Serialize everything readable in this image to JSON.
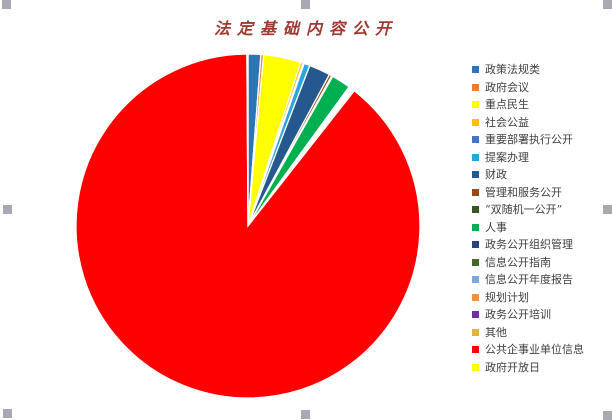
{
  "window": {
    "background": "#FFFFFF"
  },
  "selection": {
    "handle_color": "#A7AAB2"
  },
  "chart_data": {
    "type": "pie",
    "title": "法定基础内容公开",
    "title_color": "#9E3A32",
    "legend_position": "right",
    "legend_text_color": "#3F3F3F",
    "grid": "off",
    "data_labels": "none",
    "unit": "%",
    "categories": [
      "政策法规类",
      "政府会议",
      "重点民生",
      "社会公益",
      "重要部署执行公开",
      "提案办理",
      "财政",
      "管理和服务公开",
      "“双随机一公开”",
      "人事",
      "政务公开组织管理",
      "信息公开指南",
      "信息公开年度报告",
      "规划计划",
      "政务公开培训",
      "其他",
      "公共企事业单位信息",
      "政府开放日"
    ],
    "values": [
      1.2,
      0.25,
      3.5,
      0.25,
      0.1,
      0.55,
      2.0,
      0.25,
      0.1,
      1.8,
      0.1,
      0.1,
      0.1,
      0.1,
      0.1,
      0.1,
      89.3,
      0.1
    ],
    "colors": [
      "#2E75B6",
      "#ED7D31",
      "#FFFF00",
      "#FFC000",
      "#4472C4",
      "#27A6DF",
      "#24588F",
      "#9E480E",
      "#375623",
      "#00B050",
      "#264478",
      "#43682B",
      "#7EA6E0",
      "#E8914E",
      "#7030A0",
      "#E2B33C",
      "#FF0000",
      "#FFFF00"
    ]
  }
}
